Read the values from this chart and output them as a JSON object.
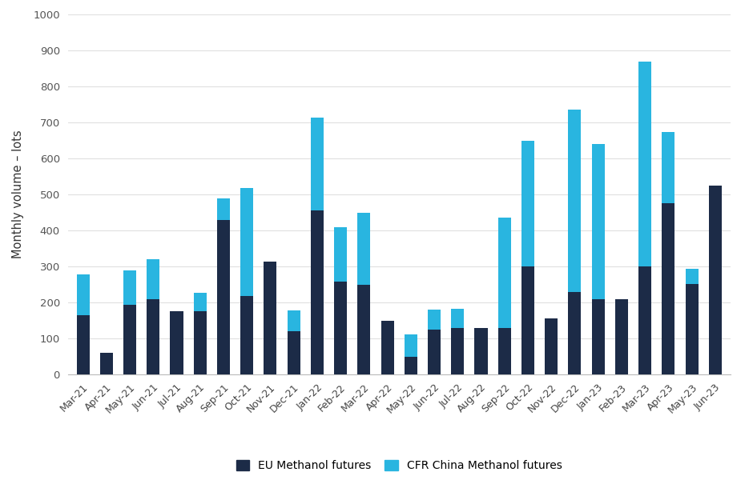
{
  "categories": [
    "Mar-21",
    "Apr-21",
    "May-21",
    "Jun-21",
    "Jul-21",
    "Aug-21",
    "Sep-21",
    "Oct-21",
    "Nov-21",
    "Dec-21",
    "Jan-22",
    "Feb-22",
    "Mar-22",
    "Apr-22",
    "May-22",
    "Jun-22",
    "Jul-22",
    "Aug-22",
    "Sep-22",
    "Oct-22",
    "Nov-22",
    "Dec-22",
    "Jan-23",
    "Feb-23",
    "Mar-23",
    "Apr-23",
    "May-23",
    "Jun-23"
  ],
  "eu_methanol": [
    165,
    60,
    193,
    208,
    175,
    175,
    428,
    218,
    313,
    120,
    455,
    258,
    248,
    150,
    50,
    125,
    130,
    130,
    130,
    300,
    155,
    228,
    210,
    210,
    300,
    475,
    252,
    525
  ],
  "cfr_china": [
    112,
    0,
    97,
    112,
    0,
    52,
    62,
    300,
    0,
    58,
    258,
    152,
    202,
    0,
    62,
    55,
    52,
    0,
    305,
    348,
    0,
    508,
    430,
    0,
    568,
    198,
    42,
    0
  ],
  "eu_color": "#1c2b47",
  "cfr_color": "#29b5e0",
  "background_color": "#ffffff",
  "ylabel": "Monthly volume – lots",
  "ylim": [
    0,
    1000
  ],
  "yticks": [
    0,
    100,
    200,
    300,
    400,
    500,
    600,
    700,
    800,
    900,
    1000
  ],
  "legend_eu": "EU Methanol futures",
  "legend_cfr": "CFR China Methanol futures",
  "grid_color": "#e0e0e0",
  "bar_width": 0.55
}
